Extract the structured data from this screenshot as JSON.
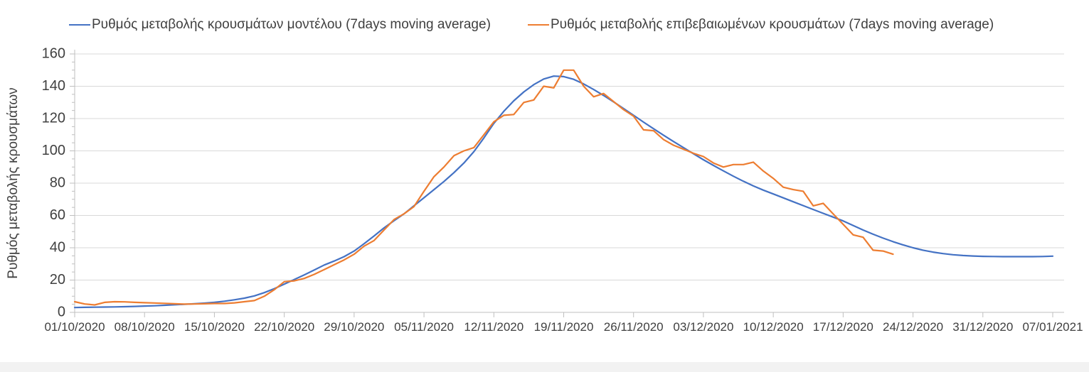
{
  "colors": {
    "background": "#ffffff",
    "text": "#404040",
    "axis": "#bfbfbf",
    "grid": "#d9d9d9",
    "series_model": "#4472c4",
    "series_confirmed": "#ed7d31"
  },
  "chart_data": {
    "type": "line",
    "title": "",
    "ylabel": "Ρυθμός μεταβολής κρουσμάτων",
    "xlabel": "",
    "ylim": [
      0,
      160
    ],
    "y_tick_step": 20,
    "y_minor_tick_step": 5,
    "grid": true,
    "legend_position": "top",
    "y_tick_labels": [
      "0",
      "20",
      "40",
      "60",
      "80",
      "100",
      "120",
      "140",
      "160"
    ],
    "x_tick_labels": [
      "01/10/2020",
      "08/10/2020",
      "15/10/2020",
      "22/10/2020",
      "29/10/2020",
      "05/11/2020",
      "12/11/2020",
      "19/11/2020",
      "26/11/2020",
      "03/12/2020",
      "10/12/2020",
      "17/12/2020",
      "24/12/2020",
      "31/12/2020",
      "07/01/2021"
    ],
    "x_days_per_tick": 7,
    "x_total_days": 98,
    "series": [
      {
        "name": "Ρυθμός μεταβολής κρουσμάτων μοντέλου (7days moving average)",
        "color": "#4472c4",
        "start_day": 0,
        "values": [
          3.0,
          3.1,
          3.2,
          3.3,
          3.4,
          3.5,
          3.7,
          3.9,
          4.1,
          4.4,
          4.7,
          5.0,
          5.3,
          5.7,
          6.2,
          6.9,
          7.8,
          8.8,
          10.2,
          12.2,
          14.7,
          17.5,
          20.3,
          23.2,
          26.2,
          29.3,
          31.8,
          34.5,
          38.0,
          42.5,
          47.3,
          52.3,
          56.8,
          61.0,
          66.0,
          71.0,
          76.0,
          81.0,
          86.5,
          92.5,
          99.5,
          108.0,
          117.0,
          124.5,
          131.0,
          136.5,
          141.0,
          144.5,
          146.3,
          146.0,
          144.3,
          141.4,
          138.0,
          134.3,
          130.3,
          126.2,
          122.0,
          117.8,
          113.7,
          109.7,
          105.8,
          102.0,
          98.2,
          94.5,
          91.0,
          87.6,
          84.3,
          81.2,
          78.3,
          75.7,
          73.3,
          70.9,
          68.5,
          66.1,
          63.7,
          61.3,
          59.0,
          56.6,
          53.8,
          51.0,
          48.4,
          46.0,
          43.8,
          41.8,
          40.0,
          38.5,
          37.3,
          36.4,
          35.7,
          35.2,
          34.9,
          34.7,
          34.6,
          34.5,
          34.5,
          34.5,
          34.5,
          34.6,
          34.8
        ]
      },
      {
        "name": "Ρυθμός μεταβολής επιβεβαιωμένων κρουσμάτων (7days moving average)",
        "color": "#ed7d31",
        "start_day": 0,
        "values": [
          6.6,
          5.2,
          4.6,
          6.2,
          6.6,
          6.5,
          6.2,
          6.0,
          5.8,
          5.6,
          5.3,
          5.1,
          5.2,
          5.3,
          5.5,
          5.5,
          5.9,
          6.6,
          7.3,
          10.0,
          14.0,
          19.0,
          19.5,
          21.0,
          23.5,
          26.5,
          29.5,
          32.5,
          36.0,
          41.0,
          44.5,
          51.0,
          57.5,
          61.0,
          65.5,
          75.0,
          84.0,
          90.0,
          97.0,
          100.0,
          102.0,
          110.0,
          118.0,
          122.0,
          122.5,
          130.0,
          131.5,
          140.0,
          139.0,
          150.0,
          150.0,
          140.0,
          133.5,
          135.5,
          130.5,
          125.5,
          121.5,
          113.0,
          112.5,
          107.0,
          103.5,
          101.0,
          98.5,
          96.5,
          92.5,
          90.0,
          91.5,
          91.5,
          93.0,
          87.5,
          83.0,
          77.5,
          76.0,
          75.0,
          66.0,
          67.5,
          61.0,
          54.5,
          48.0,
          46.5,
          38.5,
          38.0,
          36.0
        ]
      }
    ]
  },
  "legend": {
    "items": [
      {
        "label": "Ρυθμός μεταβολής κρουσμάτων μοντέλου (7days moving average)"
      },
      {
        "label": "Ρυθμός μεταβολής επιβεβαιωμένων κρουσμάτων (7days moving average)"
      }
    ]
  }
}
